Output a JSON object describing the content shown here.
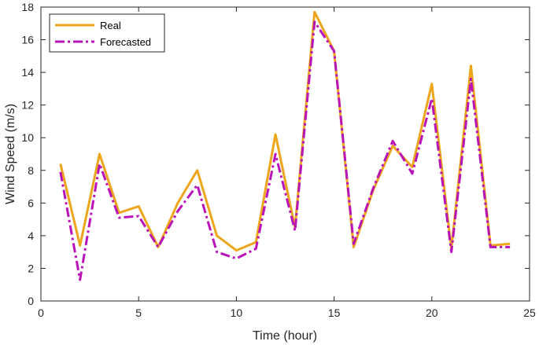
{
  "chart_data": {
    "type": "line",
    "xlabel": "Time (hour)",
    "ylabel": "Wind Speed (m/s)",
    "xlim": [
      0,
      25
    ],
    "ylim": [
      0,
      18
    ],
    "xticks": [
      0,
      5,
      10,
      15,
      20,
      25
    ],
    "yticks": [
      0,
      2,
      4,
      6,
      8,
      10,
      12,
      14,
      16,
      18
    ],
    "grid": false,
    "legend_position": "top-left",
    "x": [
      1,
      2,
      3,
      4,
      5,
      6,
      7,
      8,
      9,
      10,
      11,
      12,
      13,
      14,
      15,
      16,
      17,
      18,
      19,
      20,
      21,
      22,
      23,
      24
    ],
    "series": [
      {
        "name": "Real",
        "color": "#EDA51C",
        "style": "solid",
        "values": [
          8.4,
          3.4,
          9.0,
          5.4,
          5.8,
          3.3,
          6.0,
          8.0,
          4.0,
          3.1,
          3.6,
          10.2,
          4.5,
          17.7,
          15.3,
          3.3,
          6.8,
          9.5,
          8.2,
          13.3,
          3.2,
          14.4,
          3.4,
          3.5
        ]
      },
      {
        "name": "Forecasted",
        "color": "#B814B8",
        "style": "dashdot",
        "values": [
          7.9,
          1.3,
          8.4,
          5.1,
          5.2,
          3.3,
          5.5,
          7.1,
          3.0,
          2.6,
          3.2,
          9.0,
          4.3,
          17.1,
          15.3,
          3.5,
          6.9,
          9.8,
          7.8,
          12.4,
          3.0,
          13.6,
          3.3,
          3.3
        ]
      }
    ]
  }
}
